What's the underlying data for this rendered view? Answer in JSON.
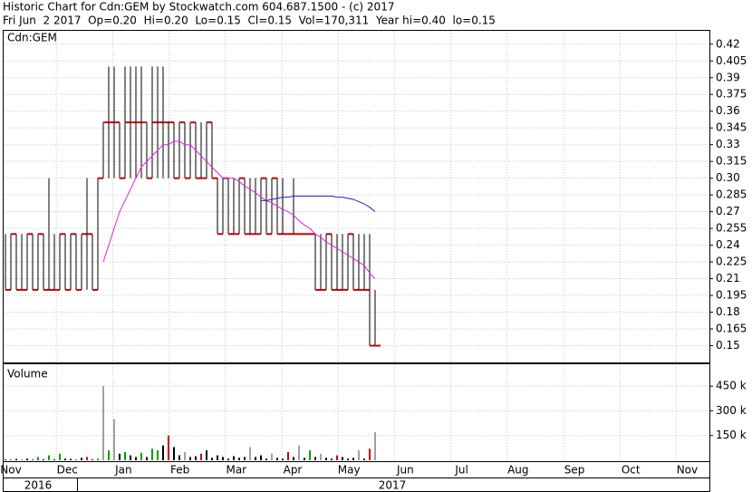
{
  "header": {
    "title": "Historic Chart for Cdn:GEM by Stockwatch.com 604.687.1500 - (c) 2017",
    "quote": "Fri Jun  2 2017  Op=0.20  Hi=0.20  Lo=0.15  Cl=0.15  Vol=170,311  Year hi=0.40  lo=0.15"
  },
  "x_axis": {
    "months": [
      "Nov",
      "Dec",
      "Jan",
      "Feb",
      "Mar",
      "Apr",
      "May",
      "Jun",
      "Jul",
      "Aug",
      "Sep",
      "Oct",
      "Nov"
    ],
    "years": [
      "2016",
      "2017"
    ]
  },
  "chart_data": [
    {
      "type": "ohlc",
      "label": "Cdn:GEM",
      "color": "#000000",
      "close_color": "#cc0000",
      "grid": true,
      "high": [
        0.25,
        0.25,
        0.25,
        0.25,
        0.25,
        0.25,
        0.25,
        0.25,
        0.3,
        0.25,
        0.25,
        0.25,
        0.25,
        0.25,
        0.25,
        0.3,
        0.25,
        0.3,
        0.35,
        0.4,
        0.4,
        0.35,
        0.4,
        0.4,
        0.4,
        0.4,
        0.35,
        0.4,
        0.4,
        0.4,
        0.35,
        0.35,
        0.35,
        0.35,
        0.35,
        0.35,
        0.35,
        0.35,
        0.35,
        0.3,
        0.3,
        0.3,
        0.3,
        0.3,
        0.3,
        0.3,
        0.3,
        0.3,
        0.3,
        0.3,
        0.3,
        0.3,
        0.25,
        0.3,
        0.25,
        0.25,
        0.25,
        0.25,
        0.25,
        0.25,
        0.25,
        0.25,
        0.25,
        0.25,
        0.25,
        0.25,
        0.25,
        0.25,
        0.2
      ],
      "low": [
        0.2,
        0.2,
        0.2,
        0.2,
        0.2,
        0.2,
        0.2,
        0.2,
        0.2,
        0.2,
        0.2,
        0.2,
        0.2,
        0.2,
        0.2,
        0.2,
        0.2,
        0.2,
        0.3,
        0.3,
        0.3,
        0.3,
        0.3,
        0.3,
        0.3,
        0.3,
        0.3,
        0.3,
        0.3,
        0.3,
        0.3,
        0.3,
        0.3,
        0.3,
        0.3,
        0.3,
        0.3,
        0.3,
        0.3,
        0.25,
        0.25,
        0.25,
        0.25,
        0.25,
        0.25,
        0.25,
        0.25,
        0.25,
        0.25,
        0.25,
        0.25,
        0.25,
        0.25,
        0.25,
        0.25,
        0.25,
        0.25,
        0.2,
        0.2,
        0.2,
        0.2,
        0.2,
        0.2,
        0.2,
        0.2,
        0.2,
        0.2,
        0.15,
        0.15
      ],
      "close": [
        0.2,
        0.25,
        0.2,
        0.2,
        0.25,
        0.2,
        0.25,
        0.2,
        0.2,
        0.2,
        0.25,
        0.2,
        0.25,
        0.2,
        0.25,
        0.25,
        0.2,
        0.3,
        0.35,
        0.35,
        0.35,
        0.3,
        0.35,
        0.35,
        0.35,
        0.35,
        0.3,
        0.35,
        0.35,
        0.35,
        0.35,
        0.3,
        0.35,
        0.3,
        0.35,
        0.3,
        0.3,
        0.35,
        0.3,
        0.25,
        0.3,
        0.25,
        0.25,
        0.3,
        0.25,
        0.25,
        0.25,
        0.3,
        0.25,
        0.3,
        0.25,
        0.25,
        0.25,
        0.25,
        0.25,
        0.25,
        0.25,
        0.2,
        0.2,
        0.25,
        0.2,
        0.2,
        0.2,
        0.25,
        0.2,
        0.2,
        0.2,
        0.15,
        0.15
      ],
      "series": [
        {
          "color": "#e020e0",
          "values": [
            null,
            null,
            null,
            null,
            null,
            null,
            null,
            null,
            null,
            null,
            null,
            null,
            null,
            null,
            null,
            null,
            null,
            null,
            0.225,
            0.24,
            0.255,
            0.27,
            0.28,
            0.29,
            0.3,
            0.31,
            0.315,
            0.32,
            0.325,
            0.33,
            0.33,
            0.333,
            0.333,
            0.33,
            0.33,
            0.325,
            0.32,
            0.315,
            0.31,
            0.305,
            0.3,
            0.3,
            0.3,
            0.297,
            0.293,
            0.29,
            0.287,
            0.283,
            0.28,
            0.278,
            0.275,
            0.272,
            0.27,
            0.267,
            0.262,
            0.258,
            0.255,
            0.25,
            0.247,
            0.243,
            0.24,
            0.237,
            0.234,
            0.231,
            0.228,
            0.225,
            0.222,
            0.215,
            0.21
          ]
        },
        {
          "color": "#2020c0",
          "values": [
            null,
            null,
            null,
            null,
            null,
            null,
            null,
            null,
            null,
            null,
            null,
            null,
            null,
            null,
            null,
            null,
            null,
            null,
            null,
            null,
            null,
            null,
            null,
            null,
            null,
            null,
            null,
            null,
            null,
            null,
            null,
            null,
            null,
            null,
            null,
            null,
            null,
            null,
            null,
            null,
            null,
            null,
            null,
            null,
            null,
            null,
            null,
            0.28,
            0.28,
            0.281,
            0.282,
            0.283,
            0.283,
            0.284,
            0.284,
            0.284,
            0.284,
            0.284,
            0.284,
            0.284,
            0.284,
            0.283,
            0.283,
            0.282,
            0.281,
            0.279,
            0.277,
            0.274,
            0.27
          ]
        }
      ],
      "ylim": [
        0.135,
        0.432
      ],
      "yticks": [
        0.15,
        0.165,
        0.18,
        0.195,
        0.21,
        0.225,
        0.24,
        0.255,
        0.27,
        0.285,
        {
          "value": 0.3,
          "label": "0.30"
        },
        0.315,
        0.33,
        0.345,
        0.36,
        0.375,
        0.39,
        0.405,
        0.42
      ]
    },
    {
      "type": "volume",
      "label": "Volume",
      "grid": true,
      "values": [
        5000,
        3000,
        8000,
        2000,
        10000,
        4000,
        20000,
        6000,
        30000,
        5000,
        40000,
        10000,
        8000,
        3000,
        15000,
        20000,
        5000,
        10000,
        450000,
        60000,
        250000,
        40000,
        50000,
        30000,
        20000,
        45000,
        20000,
        70000,
        60000,
        90000,
        150000,
        80000,
        30000,
        50000,
        20000,
        25000,
        40000,
        60000,
        15000,
        30000,
        20000,
        10000,
        25000,
        15000,
        20000,
        80000,
        20000,
        30000,
        10000,
        40000,
        15000,
        10000,
        50000,
        20000,
        90000,
        15000,
        60000,
        20000,
        40000,
        15000,
        10000,
        30000,
        20000,
        10000,
        15000,
        60000,
        10000,
        70000,
        170311
      ],
      "colors": [
        "#000000",
        "#000000",
        "#000000",
        "#000000",
        "#000000",
        "#000000",
        "#00a000",
        "#000000",
        "#00a000",
        "#000000",
        "#00a000",
        "#000000",
        "#000000",
        "#000000",
        "#000000",
        "#cc0000",
        "#000000",
        "#00a000",
        "#a0a0a0",
        "#00a000",
        "#a0a0a0",
        "#000000",
        "#00a000",
        "#000000",
        "#000000",
        "#00a000",
        "#000000",
        "#00a000",
        "#00a000",
        "#000000",
        "#cc0000",
        "#000000",
        "#000000",
        "#a0a0a0",
        "#000000",
        "#000000",
        "#cc0000",
        "#000000",
        "#000000",
        "#000000",
        "#000000",
        "#000000",
        "#000000",
        "#000000",
        "#000000",
        "#a0a0a0",
        "#000000",
        "#000000",
        "#000000",
        "#a0a0a0",
        "#000000",
        "#000000",
        "#cc0000",
        "#000000",
        "#a0a0a0",
        "#000000",
        "#00a000",
        "#000000",
        "#a0a0a0",
        "#000000",
        "#000000",
        "#cc0000",
        "#000000",
        "#000000",
        "#000000",
        "#a0a0a0",
        "#000000",
        "#cc0000",
        "#a0a0a0"
      ],
      "ylim": [
        0,
        583000
      ],
      "yticks": [
        {
          "value": 150000,
          "label": "150 k"
        },
        {
          "value": 300000,
          "label": "300 k"
        },
        {
          "value": 450000,
          "label": "450 k"
        }
      ]
    }
  ]
}
